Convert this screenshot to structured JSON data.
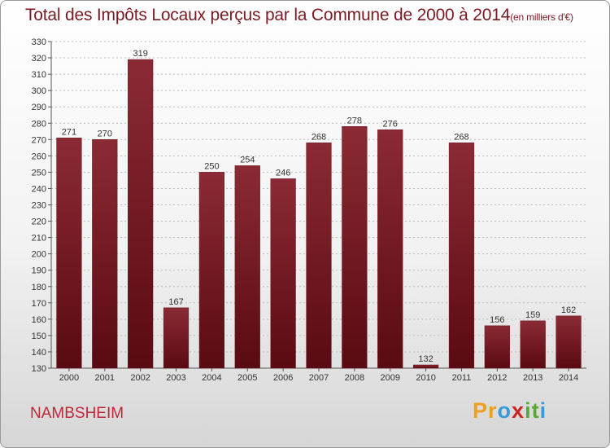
{
  "title": "Total des Impôts Locaux perçus par la Commune de 2000 à 2014",
  "subtitle": "(en milliers d'€)",
  "commune": "NAMBSHEIM",
  "logo": {
    "letters": [
      "P",
      "r",
      "o",
      "x",
      "i",
      "t",
      "i"
    ],
    "colors": [
      "#f0a020",
      "#f0a020",
      "#3a9ad8",
      "#cc2222",
      "#5aa83a",
      "#5aa83a",
      "#3a9ad8"
    ]
  },
  "colors": {
    "bar": "#8b1c2a",
    "bar_dark": "#5a0c16",
    "title": "#7a1a22",
    "commune": "#c0283a"
  },
  "chart_data": {
    "type": "bar",
    "categories": [
      "2000",
      "2001",
      "2002",
      "2003",
      "2004",
      "2005",
      "2006",
      "2007",
      "2008",
      "2009",
      "2010",
      "2011",
      "2012",
      "2013",
      "2014"
    ],
    "values": [
      271,
      270,
      319,
      167,
      250,
      254,
      246,
      268,
      278,
      276,
      132,
      268,
      156,
      159,
      162
    ],
    "title": "Total des Impôts Locaux perçus par la Commune de 2000 à 2014",
    "xlabel": "",
    "ylabel": "",
    "ylim": [
      130,
      330
    ],
    "yticks": [
      130,
      140,
      150,
      160,
      170,
      180,
      190,
      200,
      210,
      220,
      230,
      240,
      250,
      260,
      270,
      280,
      290,
      300,
      310,
      320,
      330
    ],
    "grid": true
  }
}
